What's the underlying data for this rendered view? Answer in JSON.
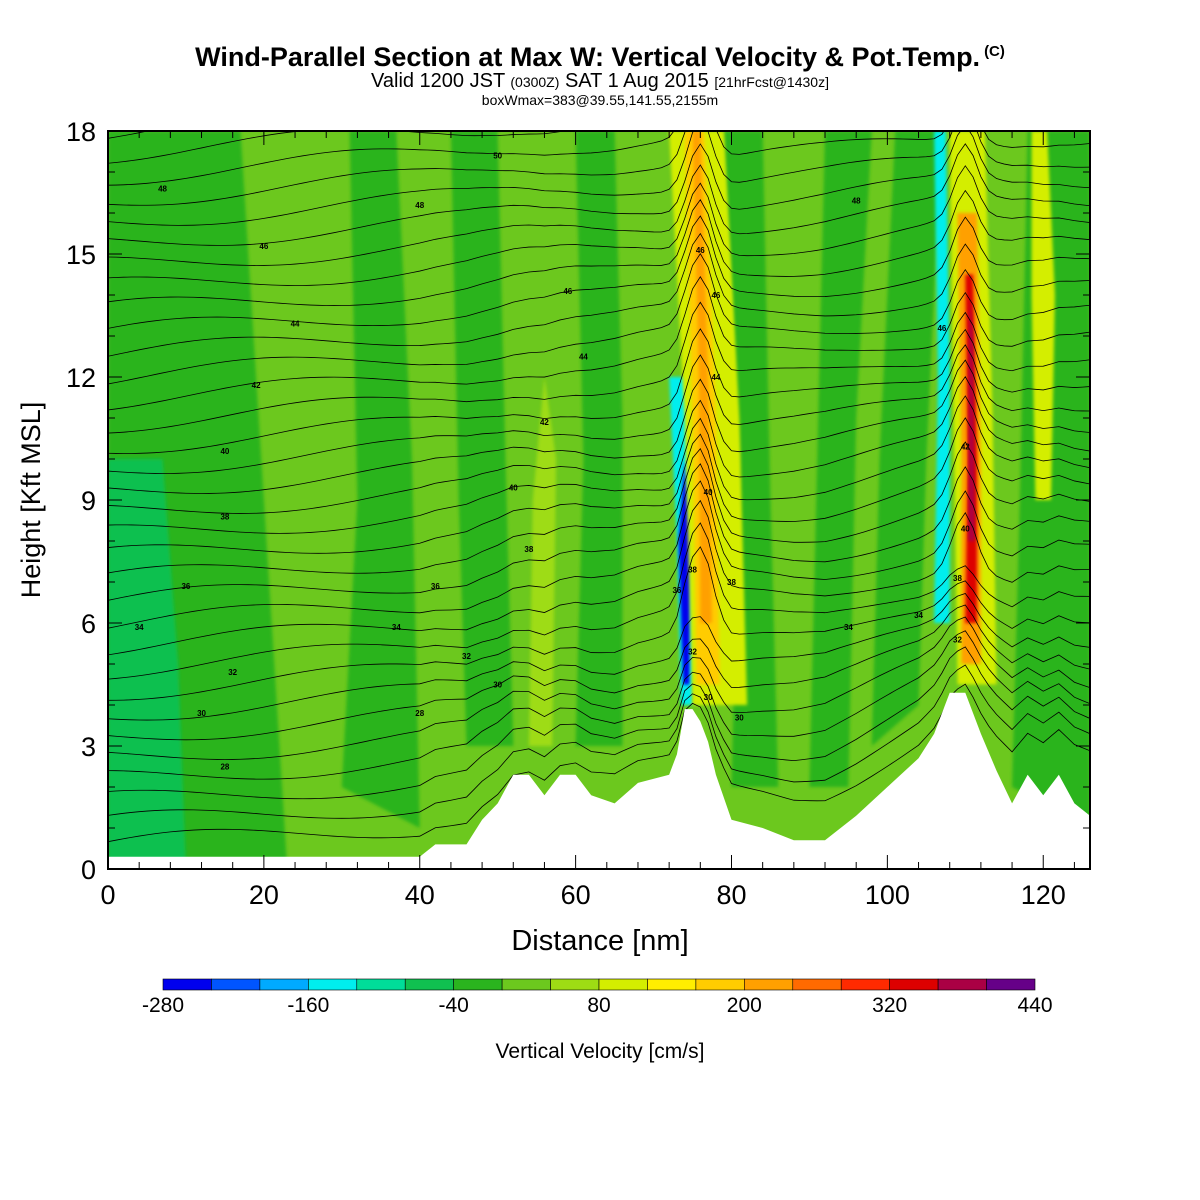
{
  "title": "Wind-Parallel Section at Max W: Vertical Velocity & Pot.Temp.",
  "copyright_mark": "(C)",
  "subtitle": {
    "valid_prefix": "Valid 1200 JST",
    "utc": "(0300Z)",
    "date": "SAT 1 Aug 2015",
    "forecast": "[21hrFcst@1430z]"
  },
  "box_line": "boxWmax=383@39.55,141.55,2155m",
  "chart_data": {
    "type": "heatmap",
    "xlabel": "Distance [nm]",
    "ylabel": "Height [Kft MSL]",
    "xlim": [
      0,
      126
    ],
    "ylim": [
      0,
      18
    ],
    "x_ticks": [
      0,
      20,
      40,
      60,
      80,
      100,
      120
    ],
    "y_ticks": [
      0,
      3,
      6,
      9,
      12,
      15,
      18
    ],
    "colorbar": {
      "label": "Vertical Velocity [cm/s]",
      "tick_labels": [
        -280,
        -160,
        -40,
        80,
        200,
        320,
        440
      ],
      "levels": [
        -280,
        -240,
        -200,
        -160,
        -120,
        -80,
        -40,
        0,
        40,
        80,
        120,
        160,
        200,
        240,
        280,
        320,
        360,
        400,
        440
      ],
      "colors": [
        "#0000ee",
        "#0055ff",
        "#00aaff",
        "#00eeee",
        "#00dd99",
        "#10c050",
        "#2ab41e",
        "#6cc81e",
        "#9edc14",
        "#d4ee00",
        "#ffee00",
        "#ffcc00",
        "#ffa000",
        "#ff6a00",
        "#ff2a00",
        "#dd0000",
        "#aa0044",
        "#660088"
      ]
    },
    "background_color": "#6cc81e",
    "features": [
      {
        "name": "updraft",
        "x": 76.5,
        "y_top": 18,
        "y_base": 4,
        "w_cms": 240
      },
      {
        "name": "downdraft",
        "x": 74,
        "y_top": 9.5,
        "y_base": 4,
        "w_cms": -280
      },
      {
        "name": "updraft",
        "x": 110.5,
        "y_top": 14.5,
        "y_base": 4.5,
        "w_cms": 383
      },
      {
        "name": "downdraft",
        "x": 108,
        "y_top": 18,
        "y_base": 7,
        "w_cms": -160
      }
    ],
    "terrain_nm_kft": [
      [
        0,
        0.3
      ],
      [
        40,
        0.3
      ],
      [
        42,
        0.6
      ],
      [
        46,
        0.6
      ],
      [
        48,
        1.2
      ],
      [
        50,
        1.6
      ],
      [
        52,
        2.3
      ],
      [
        54,
        2.3
      ],
      [
        56,
        1.8
      ],
      [
        58,
        2.3
      ],
      [
        60,
        2.3
      ],
      [
        62,
        1.8
      ],
      [
        65,
        1.6
      ],
      [
        68,
        2.1
      ],
      [
        72,
        2.3
      ],
      [
        73,
        2.8
      ],
      [
        74,
        3.9
      ],
      [
        75,
        3.9
      ],
      [
        76,
        3.6
      ],
      [
        77,
        3.1
      ],
      [
        78,
        2.3
      ],
      [
        80,
        1.2
      ],
      [
        84,
        1.0
      ],
      [
        88,
        0.7
      ],
      [
        92,
        0.7
      ],
      [
        96,
        1.3
      ],
      [
        100,
        2.0
      ],
      [
        104,
        2.7
      ],
      [
        106,
        3.3
      ],
      [
        108,
        4.3
      ],
      [
        110,
        4.3
      ],
      [
        112,
        3.3
      ],
      [
        114,
        2.4
      ],
      [
        116,
        1.6
      ],
      [
        118,
        2.3
      ],
      [
        120,
        1.8
      ],
      [
        122,
        2.3
      ],
      [
        124,
        1.6
      ],
      [
        126,
        1.3
      ]
    ],
    "theta_labels": [
      {
        "text": "50",
        "x": 50,
        "y": 17.4
      },
      {
        "text": "48",
        "x": 7,
        "y": 16.6
      },
      {
        "text": "48",
        "x": 40,
        "y": 16.2
      },
      {
        "text": "48",
        "x": 96,
        "y": 16.3
      },
      {
        "text": "46",
        "x": 20,
        "y": 15.2
      },
      {
        "text": "46",
        "x": 59,
        "y": 14.1
      },
      {
        "text": "46",
        "x": 76,
        "y": 15.1
      },
      {
        "text": "46",
        "x": 78,
        "y": 14.0
      },
      {
        "text": "46",
        "x": 107,
        "y": 13.2
      },
      {
        "text": "44",
        "x": 24,
        "y": 13.3
      },
      {
        "text": "44",
        "x": 61,
        "y": 12.5
      },
      {
        "text": "44",
        "x": 78,
        "y": 12.0
      },
      {
        "text": "42",
        "x": 19,
        "y": 11.8
      },
      {
        "text": "42",
        "x": 56,
        "y": 10.9
      },
      {
        "text": "42",
        "x": 110,
        "y": 10.3
      },
      {
        "text": "40",
        "x": 15,
        "y": 10.2
      },
      {
        "text": "40",
        "x": 52,
        "y": 9.3
      },
      {
        "text": "40",
        "x": 77,
        "y": 9.2
      },
      {
        "text": "40",
        "x": 110,
        "y": 8.3
      },
      {
        "text": "38",
        "x": 15,
        "y": 8.6
      },
      {
        "text": "38",
        "x": 54,
        "y": 7.8
      },
      {
        "text": "38",
        "x": 75,
        "y": 7.3
      },
      {
        "text": "38",
        "x": 80,
        "y": 7.0
      },
      {
        "text": "38",
        "x": 109,
        "y": 7.1
      },
      {
        "text": "36",
        "x": 10,
        "y": 6.9
      },
      {
        "text": "36",
        "x": 42,
        "y": 6.9
      },
      {
        "text": "36",
        "x": 73,
        "y": 6.8
      },
      {
        "text": "34",
        "x": 4,
        "y": 5.9
      },
      {
        "text": "34",
        "x": 37,
        "y": 5.9
      },
      {
        "text": "34",
        "x": 95,
        "y": 5.9
      },
      {
        "text": "34",
        "x": 104,
        "y": 6.2
      },
      {
        "text": "32",
        "x": 16,
        "y": 4.8
      },
      {
        "text": "32",
        "x": 46,
        "y": 5.2
      },
      {
        "text": "32",
        "x": 75,
        "y": 5.3
      },
      {
        "text": "32",
        "x": 109,
        "y": 5.6
      },
      {
        "text": "30",
        "x": 12,
        "y": 3.8
      },
      {
        "text": "30",
        "x": 50,
        "y": 4.5
      },
      {
        "text": "30",
        "x": 77,
        "y": 4.2
      },
      {
        "text": "30",
        "x": 81,
        "y": 3.7
      },
      {
        "text": "28",
        "x": 15,
        "y": 2.5
      },
      {
        "text": "28",
        "x": 40,
        "y": 3.8
      }
    ]
  }
}
